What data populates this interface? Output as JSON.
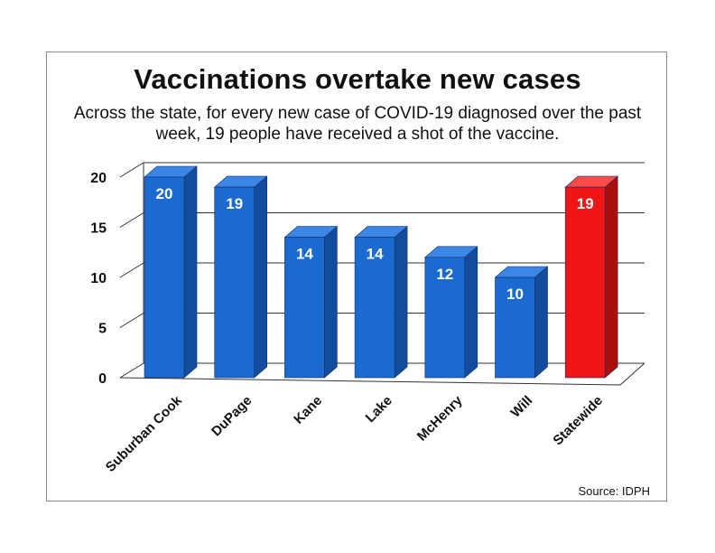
{
  "title": "Vaccinations overtake new cases",
  "subtitle": "Across the state, for every new case of COVID-19 diagnosed over the past week, 19 people have received a shot of the vaccine.",
  "source": "Source: IDPH",
  "chart_data": {
    "type": "bar",
    "title": "Vaccinations overtake new cases",
    "categories": [
      "Suburban Cook",
      "DuPage",
      "Kane",
      "Lake",
      "McHenry",
      "Will",
      "Statewide"
    ],
    "values": [
      20,
      19,
      14,
      14,
      12,
      10,
      19
    ],
    "data_labels": [
      "20",
      "19",
      "14",
      "14",
      "12",
      "10",
      "19"
    ],
    "yticks": [
      0,
      5,
      10,
      15,
      20
    ],
    "ylim": [
      0,
      20
    ],
    "grid": true,
    "legend": "none",
    "colors": {
      "bar_front": "#1b6ad0",
      "bar_side": "#134c9c",
      "bar_top": "#3b86e6",
      "highlight_front": "#f01515",
      "highlight_side": "#a80f0f",
      "highlight_top": "#ff4a4a",
      "highlight_category": "Statewide",
      "grid": "#333333"
    }
  }
}
